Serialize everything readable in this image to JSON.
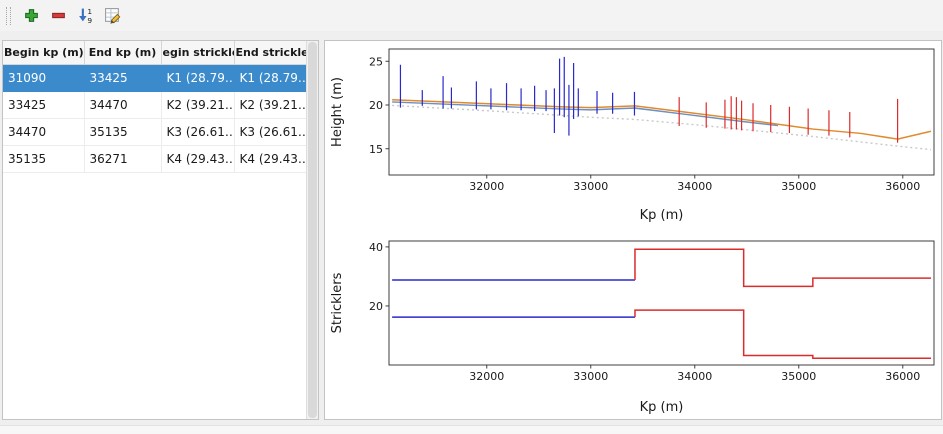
{
  "toolbar": {
    "buttons": [
      {
        "id": "add",
        "icon": "plus-icon",
        "color": "#3aa63a"
      },
      {
        "id": "remove",
        "icon": "minus-icon",
        "color": "#d23c3c"
      },
      {
        "id": "sort",
        "icon": "sort-ascending-icon",
        "color": "#3a6fc4"
      },
      {
        "id": "edit",
        "icon": "edit-table-icon",
        "color": "#f0c040"
      }
    ]
  },
  "table": {
    "columns": [
      "Begin kp (m)",
      "End kp (m)",
      "egin strickle",
      "End strickler"
    ],
    "rows": [
      {
        "cells": [
          "31090",
          "33425",
          "K1 (28.79…",
          "K1 (28.79…"
        ],
        "selected": true
      },
      {
        "cells": [
          "33425",
          "34470",
          "K2 (39.21…",
          "K2 (39.21…"
        ],
        "selected": false
      },
      {
        "cells": [
          "34470",
          "35135",
          "K3 (26.61…",
          "K3 (26.61…"
        ],
        "selected": false
      },
      {
        "cells": [
          "35135",
          "36271",
          "K4 (29.43…",
          "K4 (29.43…"
        ],
        "selected": false
      }
    ]
  },
  "colors": {
    "selection": "#3b8bcc",
    "selected_section": "#2929cc",
    "other_section": "#dd2b2b",
    "bed_line": "#e08a2e",
    "water_line": "#6f8fc0",
    "envelope_line": "#c8c8c8"
  },
  "chart_data": [
    {
      "type": "line",
      "title": "",
      "xlabel": "Kp (m)",
      "ylabel": "Height (m)",
      "xlim": [
        31060,
        36300
      ],
      "ylim": [
        12,
        26.4
      ],
      "xticks": [
        32000,
        33000,
        34000,
        35000,
        36000
      ],
      "yticks": [
        15,
        20,
        25
      ],
      "series": [
        {
          "name": "lower-envelope-dotted",
          "kind": "line",
          "color": "#c8c8c8",
          "dash": "2 3",
          "width": 1.4,
          "points": [
            [
              31090,
              19.95
            ],
            [
              32000,
              19.35
            ],
            [
              33000,
              18.6
            ],
            [
              33425,
              18.35
            ],
            [
              34000,
              17.75
            ],
            [
              34470,
              17.2
            ],
            [
              35135,
              16.4
            ],
            [
              35950,
              15.3
            ],
            [
              36271,
              14.9
            ]
          ]
        },
        {
          "name": "water-line",
          "kind": "line",
          "color": "#6f8fc0",
          "width": 1.5,
          "points": [
            [
              31090,
              20.35
            ],
            [
              31700,
              20.05
            ],
            [
              32300,
              19.75
            ],
            [
              32700,
              19.55
            ],
            [
              33000,
              19.45
            ],
            [
              33425,
              19.65
            ],
            [
              33900,
              18.95
            ],
            [
              34470,
              18.1
            ],
            [
              34800,
              17.65
            ]
          ]
        },
        {
          "name": "bed-line",
          "kind": "line",
          "color": "#e08a2e",
          "width": 1.5,
          "points": [
            [
              31090,
              20.6
            ],
            [
              31700,
              20.3
            ],
            [
              32300,
              20.0
            ],
            [
              32700,
              19.8
            ],
            [
              33000,
              19.7
            ],
            [
              33425,
              19.9
            ],
            [
              33900,
              19.2
            ],
            [
              34470,
              18.35
            ],
            [
              35135,
              17.25
            ],
            [
              35600,
              16.75
            ],
            [
              35950,
              16.1
            ],
            [
              36271,
              17.0
            ]
          ]
        },
        {
          "name": "cross-sections-selected",
          "kind": "vlines",
          "color": "#2929cc",
          "points": [
            [
              31170,
              19.7,
              24.6
            ],
            [
              31380,
              19.9,
              21.7
            ],
            [
              31580,
              19.6,
              23.3
            ],
            [
              31660,
              19.6,
              22.0
            ],
            [
              31900,
              19.5,
              22.7
            ],
            [
              32040,
              19.5,
              21.9
            ],
            [
              32190,
              19.4,
              22.5
            ],
            [
              32330,
              19.4,
              21.9
            ],
            [
              32460,
              19.3,
              22.2
            ],
            [
              32570,
              19.3,
              21.7
            ],
            [
              32650,
              16.8,
              21.9
            ],
            [
              32700,
              18.8,
              25.3
            ],
            [
              32745,
              18.6,
              25.5
            ],
            [
              32790,
              16.5,
              22.3
            ],
            [
              32835,
              18.4,
              24.8
            ],
            [
              32880,
              18.7,
              21.9
            ],
            [
              33060,
              19.0,
              21.6
            ],
            [
              33210,
              19.0,
              21.4
            ],
            [
              33420,
              18.8,
              21.5
            ]
          ]
        },
        {
          "name": "cross-sections-other",
          "kind": "vlines",
          "color": "#dd2b2b",
          "points": [
            [
              33850,
              17.6,
              20.9
            ],
            [
              34110,
              17.4,
              20.3
            ],
            [
              34290,
              17.3,
              20.6
            ],
            [
              34350,
              17.2,
              21.0
            ],
            [
              34400,
              17.2,
              20.9
            ],
            [
              34450,
              17.1,
              20.5
            ],
            [
              34560,
              17.0,
              20.2
            ],
            [
              34730,
              16.9,
              20.0
            ],
            [
              34910,
              16.8,
              19.8
            ],
            [
              35090,
              16.6,
              19.6
            ],
            [
              35290,
              16.5,
              19.4
            ],
            [
              35490,
              16.3,
              19.2
            ],
            [
              35950,
              15.7,
              20.7
            ]
          ]
        }
      ]
    },
    {
      "type": "step",
      "title": "",
      "xlabel": "Kp (m)",
      "ylabel": "Stricklers",
      "xlim": [
        31060,
        36300
      ],
      "ylim": [
        0,
        42
      ],
      "xticks": [
        32000,
        33000,
        34000,
        35000,
        36000
      ],
      "yticks": [
        20,
        40
      ],
      "series": [
        {
          "name": "strickler-minor-selected",
          "kind": "line",
          "color": "#2929cc",
          "width": 1.5,
          "points": [
            [
              31090,
              28.79
            ],
            [
              33425,
              28.79
            ]
          ]
        },
        {
          "name": "strickler-minor-others",
          "kind": "line",
          "color": "#dd2b2b",
          "width": 1.5,
          "points": [
            [
              33425,
              28.79
            ],
            [
              33425,
              39.21
            ],
            [
              34470,
              39.21
            ],
            [
              34470,
              26.61
            ],
            [
              35135,
              26.61
            ],
            [
              35135,
              29.43
            ],
            [
              36271,
              29.43
            ]
          ]
        },
        {
          "name": "strickler-major-selected",
          "kind": "line",
          "color": "#2929cc",
          "width": 1.5,
          "points": [
            [
              31090,
              16.2
            ],
            [
              33425,
              16.2
            ]
          ]
        },
        {
          "name": "strickler-major-others",
          "kind": "line",
          "color": "#dd2b2b",
          "width": 1.5,
          "points": [
            [
              33425,
              16.2
            ],
            [
              33425,
              18.6
            ],
            [
              34470,
              18.6
            ],
            [
              34470,
              3.2
            ],
            [
              35135,
              3.2
            ],
            [
              35135,
              2.3
            ],
            [
              36271,
              2.3
            ]
          ]
        }
      ]
    }
  ]
}
